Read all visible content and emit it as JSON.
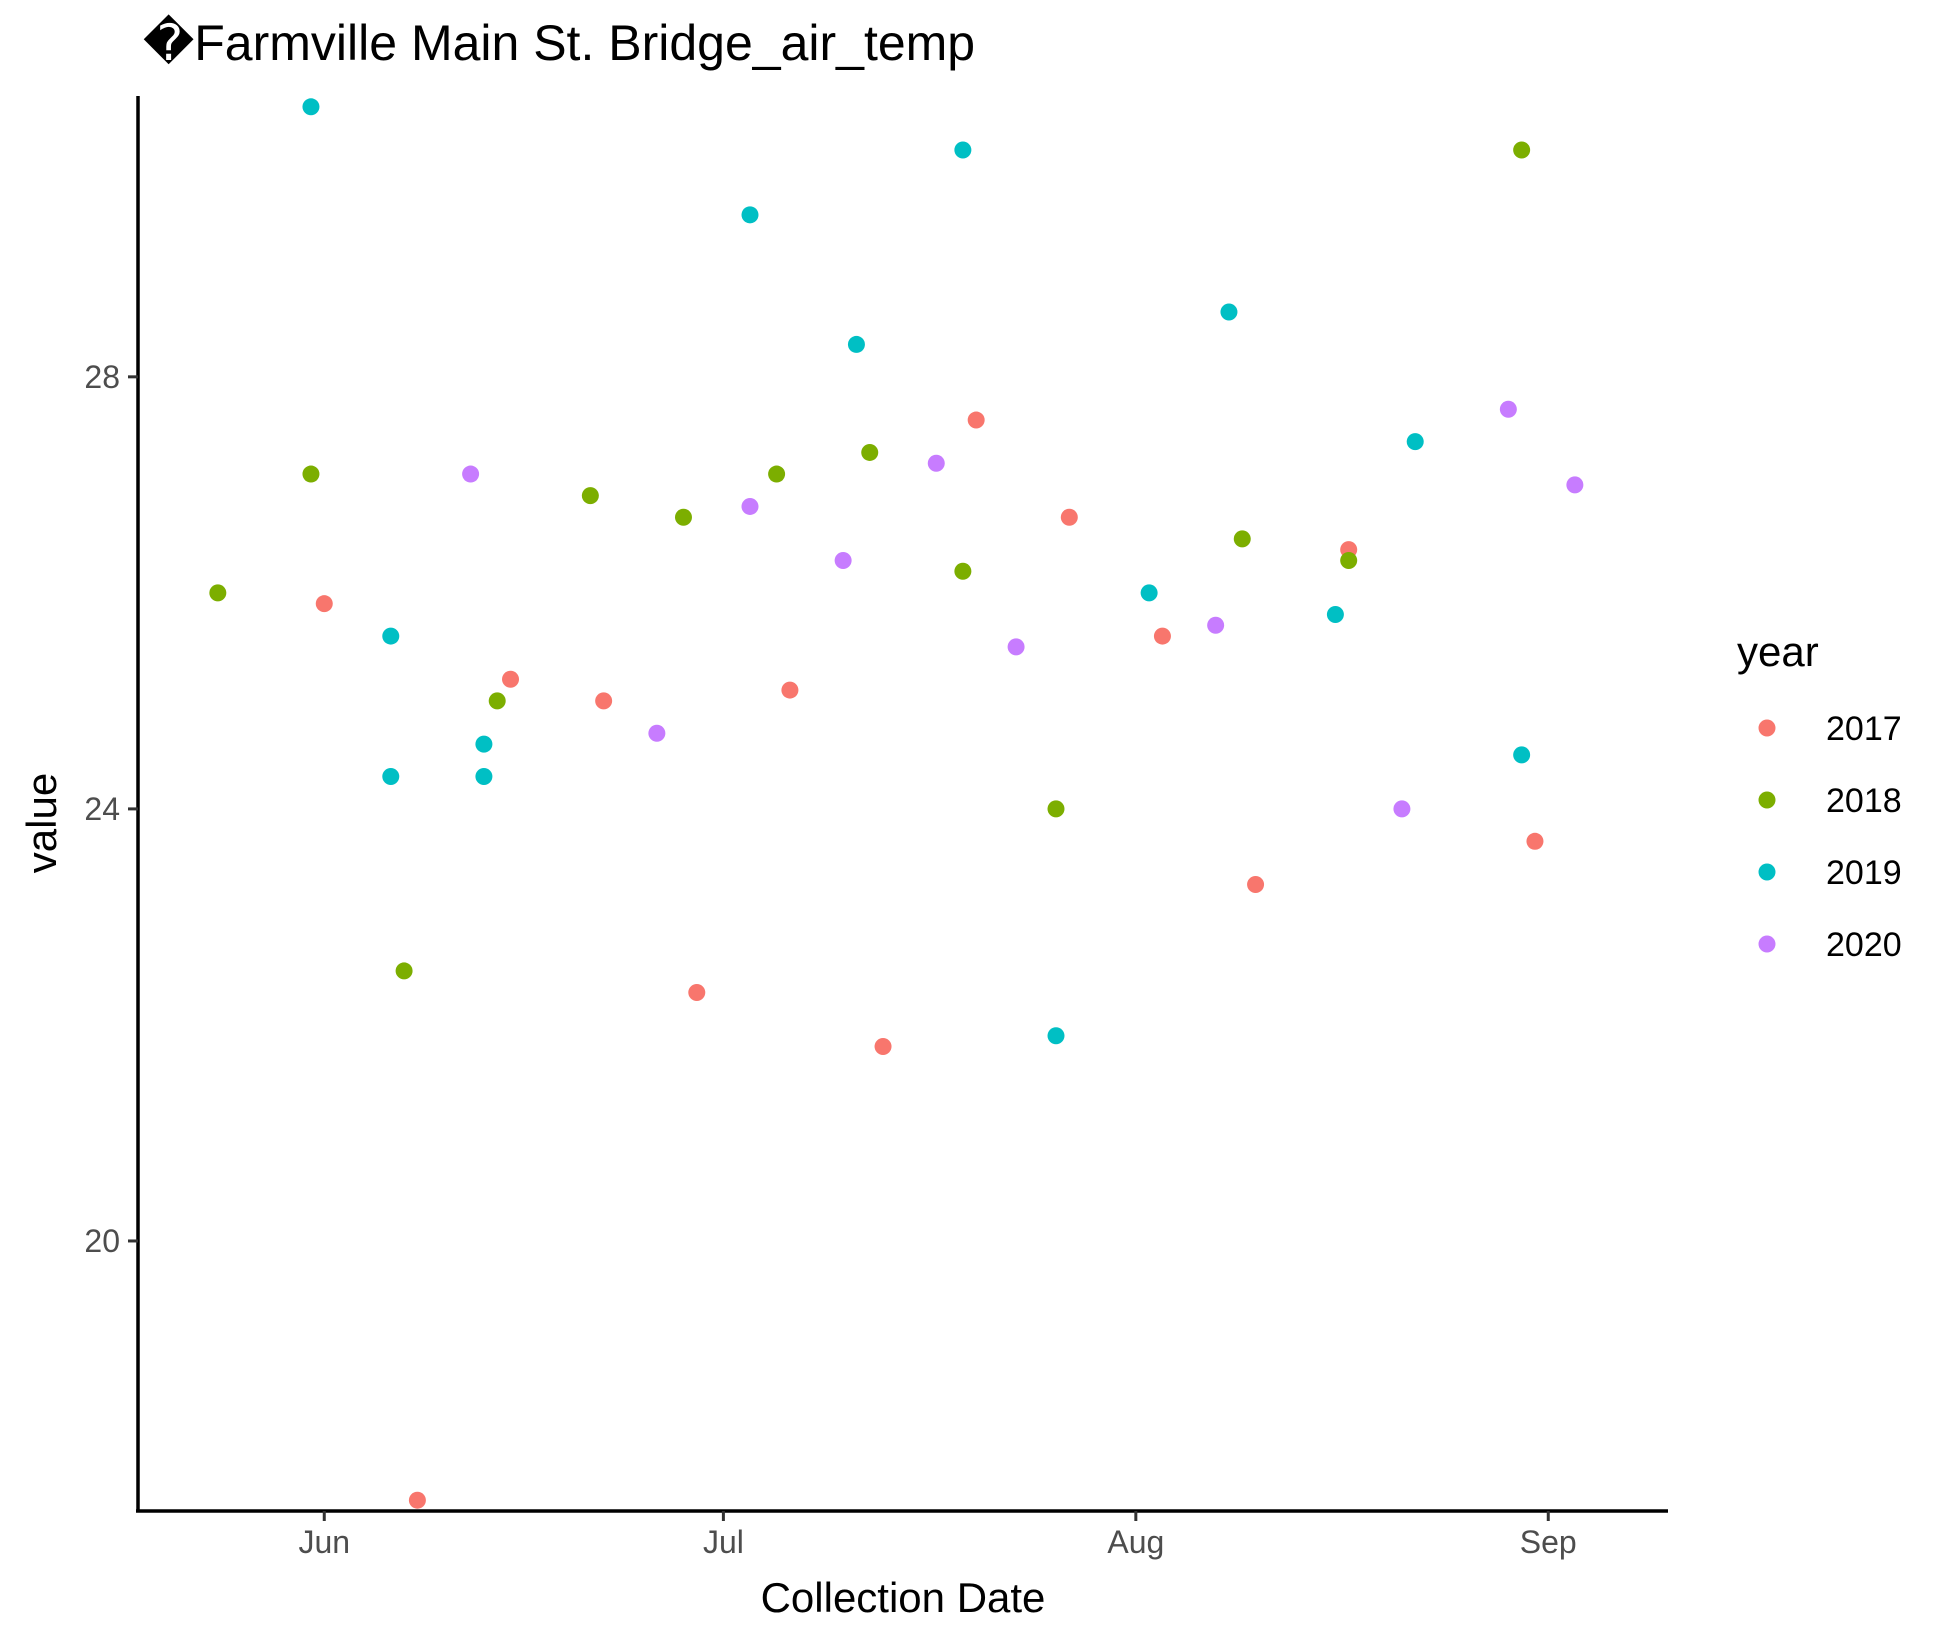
{
  "chart_data": {
    "type": "scatter",
    "title": "�Farmville Main St. Bridge_air_temp",
    "xlabel": "Collection Date",
    "ylabel": "value",
    "x_ticks": [
      "Jun",
      "Jul",
      "Aug",
      "Sep"
    ],
    "y_ticks": [
      20,
      24,
      28
    ],
    "xlim": [
      "2000-05-18",
      "2000-09-10"
    ],
    "ylim": [
      17.5,
      30.6
    ],
    "grid": false,
    "legend": {
      "title": "year",
      "position": "right"
    },
    "series": [
      {
        "name": "2017",
        "color": "#F8766D",
        "points": [
          {
            "x": "2000-06-01",
            "y": 25.9
          },
          {
            "x": "2000-06-08",
            "y": 17.6
          },
          {
            "x": "2000-06-15",
            "y": 25.2
          },
          {
            "x": "2000-06-22",
            "y": 25.0
          },
          {
            "x": "2000-06-29",
            "y": 22.3
          },
          {
            "x": "2000-07-06",
            "y": 25.1
          },
          {
            "x": "2000-07-13",
            "y": 21.8
          },
          {
            "x": "2000-07-20",
            "y": 27.6
          },
          {
            "x": "2000-07-27",
            "y": 26.7
          },
          {
            "x": "2000-08-03",
            "y": 25.6
          },
          {
            "x": "2000-08-10",
            "y": 23.3
          },
          {
            "x": "2000-08-17",
            "y": 26.4
          },
          {
            "x": "2000-08-31",
            "y": 23.7
          }
        ]
      },
      {
        "name": "2018",
        "color": "#7CAE00",
        "points": [
          {
            "x": "2000-05-24",
            "y": 26.0
          },
          {
            "x": "2000-05-31",
            "y": 27.1
          },
          {
            "x": "2000-06-07",
            "y": 22.5
          },
          {
            "x": "2000-06-14",
            "y": 25.0
          },
          {
            "x": "2000-06-21",
            "y": 26.9
          },
          {
            "x": "2000-06-28",
            "y": 26.7
          },
          {
            "x": "2000-07-05",
            "y": 27.1
          },
          {
            "x": "2000-07-12",
            "y": 27.3
          },
          {
            "x": "2000-07-19",
            "y": 26.2
          },
          {
            "x": "2000-07-26",
            "y": 24.0
          },
          {
            "x": "2000-08-09",
            "y": 26.5
          },
          {
            "x": "2000-08-17",
            "y": 26.3
          },
          {
            "x": "2000-08-30",
            "y": 30.1
          }
        ]
      },
      {
        "name": "2019",
        "color": "#00BFC4",
        "points": [
          {
            "x": "2000-05-31",
            "y": 30.5
          },
          {
            "x": "2000-06-06",
            "y": 25.6
          },
          {
            "x": "2000-06-06",
            "y": 24.3
          },
          {
            "x": "2000-06-13",
            "y": 24.6
          },
          {
            "x": "2000-06-13",
            "y": 24.3
          },
          {
            "x": "2000-07-03",
            "y": 29.5
          },
          {
            "x": "2000-07-11",
            "y": 28.3
          },
          {
            "x": "2000-07-19",
            "y": 30.1
          },
          {
            "x": "2000-07-26",
            "y": 21.9
          },
          {
            "x": "2000-08-02",
            "y": 26.0
          },
          {
            "x": "2000-08-08",
            "y": 28.6
          },
          {
            "x": "2000-08-16",
            "y": 25.8
          },
          {
            "x": "2000-08-22",
            "y": 27.4
          },
          {
            "x": "2000-08-30",
            "y": 24.5
          }
        ]
      },
      {
        "name": "2020",
        "color": "#C77CFF",
        "points": [
          {
            "x": "2000-06-12",
            "y": 27.1
          },
          {
            "x": "2000-06-26",
            "y": 24.7
          },
          {
            "x": "2000-07-03",
            "y": 26.8
          },
          {
            "x": "2000-07-10",
            "y": 26.3
          },
          {
            "x": "2000-07-17",
            "y": 27.2
          },
          {
            "x": "2000-07-23",
            "y": 25.5
          },
          {
            "x": "2000-08-07",
            "y": 25.7
          },
          {
            "x": "2000-08-21",
            "y": 24.0
          },
          {
            "x": "2000-08-29",
            "y": 27.7
          },
          {
            "x": "2000-09-03",
            "y": 27.0
          }
        ]
      }
    ]
  }
}
